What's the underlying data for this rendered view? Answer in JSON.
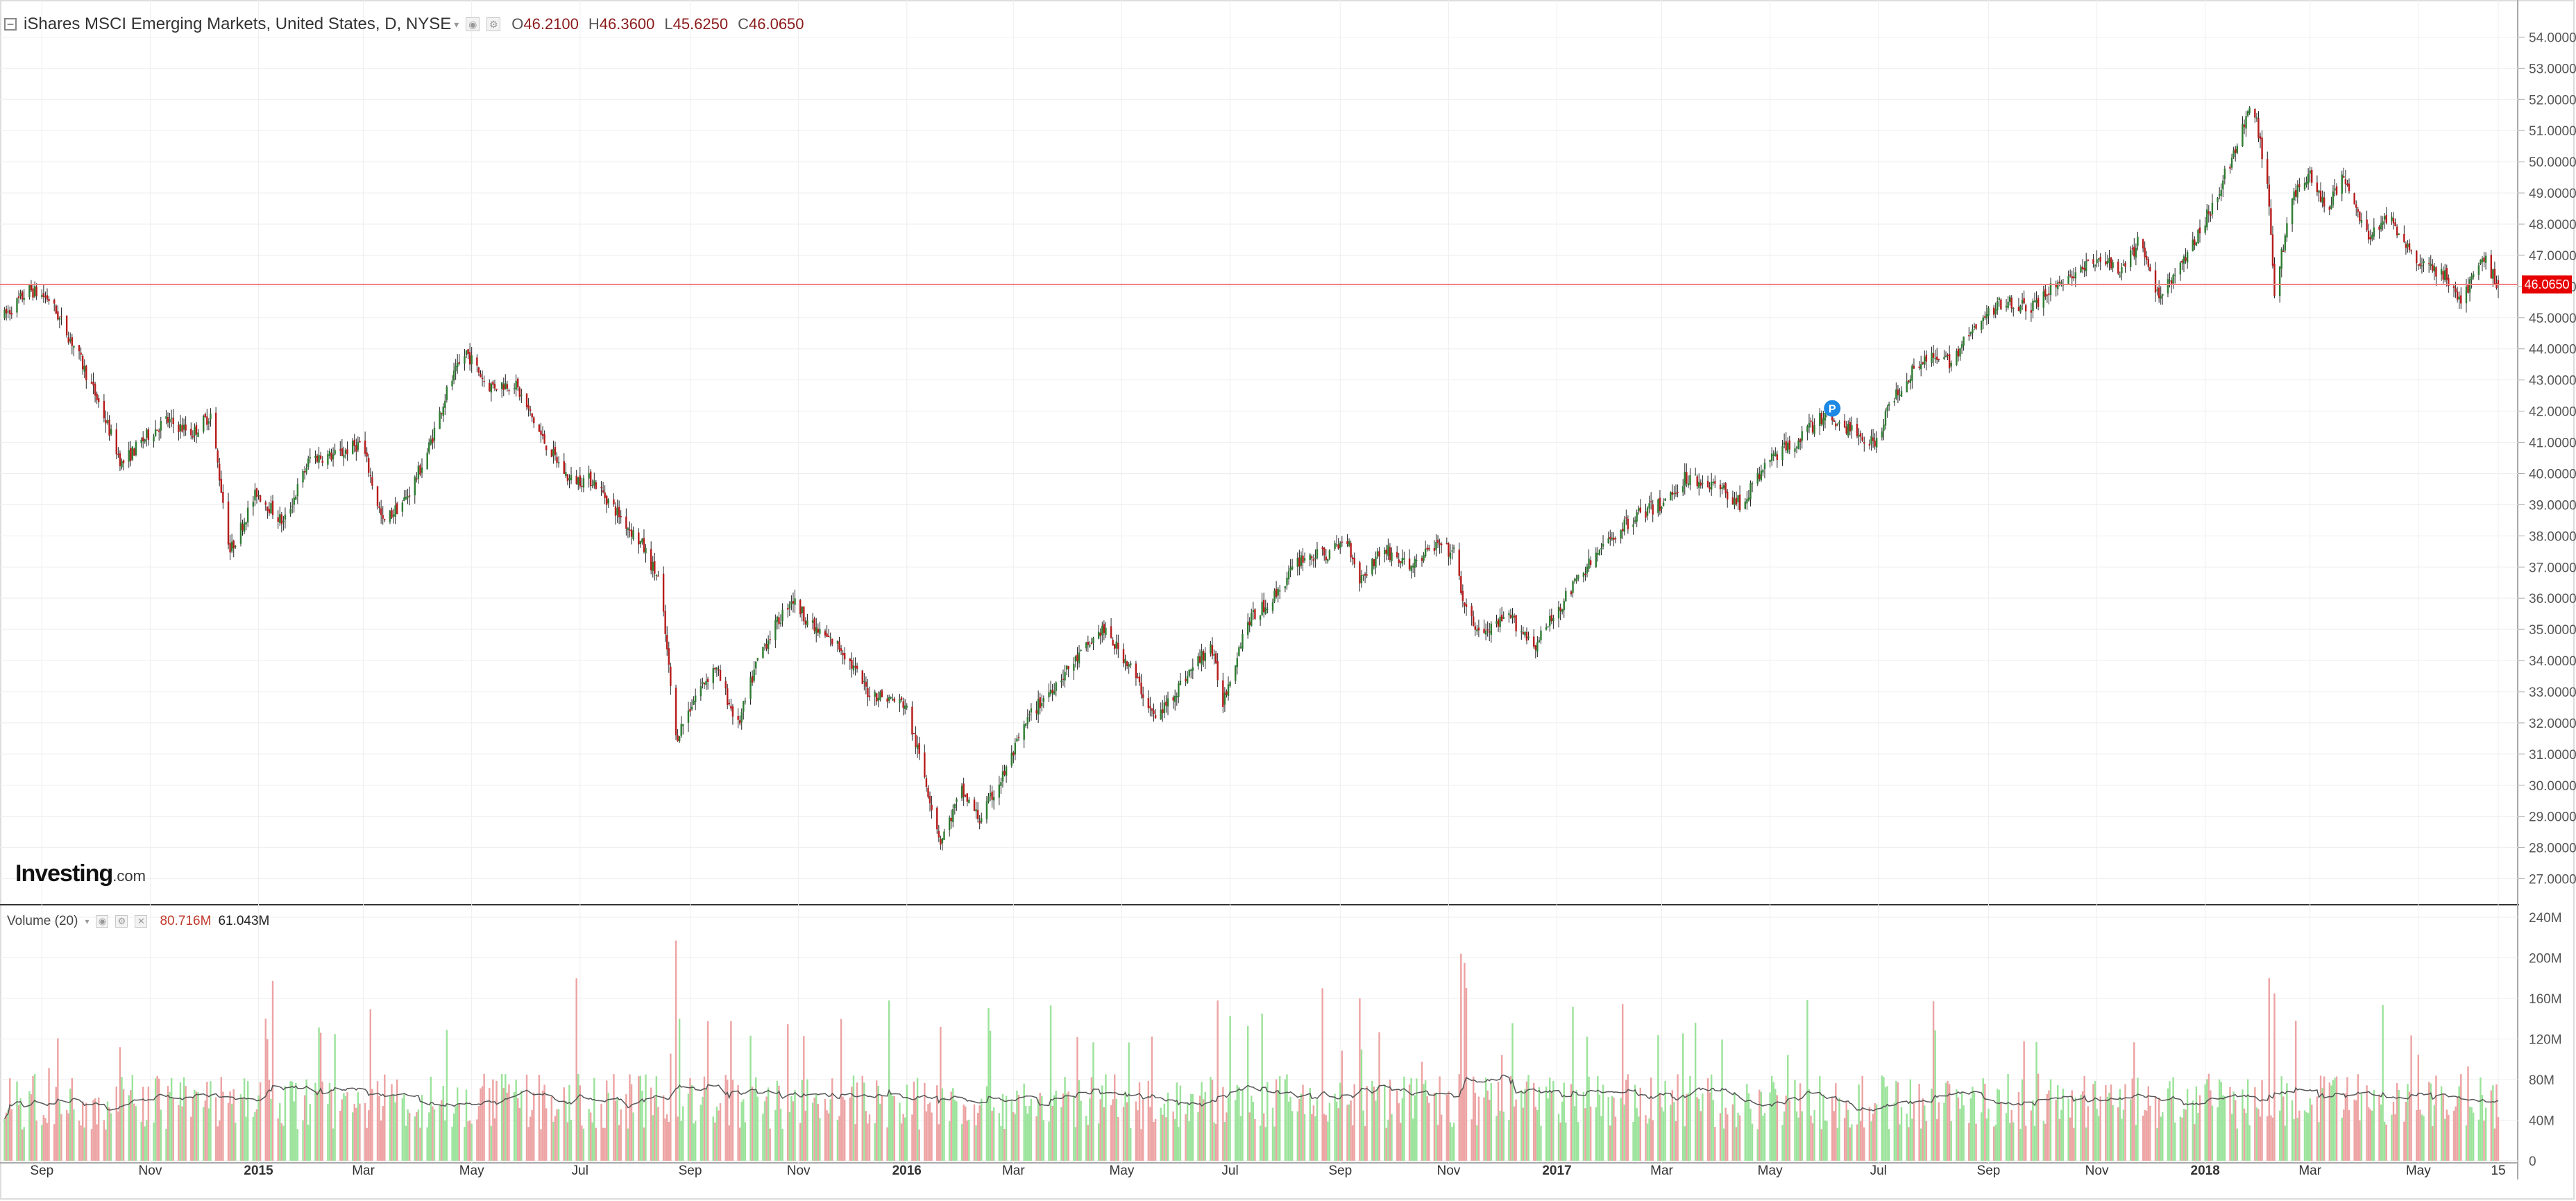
{
  "legend": {
    "title": "iShares MSCI Emerging Markets, United States, D, NYSE",
    "o_label": "O",
    "o_value": "46.2100",
    "h_label": "H",
    "h_value": "46.3600",
    "l_label": "L",
    "l_value": "45.6250",
    "c_label": "C",
    "c_value": "46.0650",
    "icon_collapse": "minus-square-icon",
    "icon_dropdown": "chevron-down-icon",
    "icon_settings": "gear-icon",
    "icon_hide": "eye-icon"
  },
  "volume_legend": {
    "title": "Volume (20)",
    "value1": "80.716M",
    "value2": "61.043M",
    "icon_dropdown": "chevron-down-icon",
    "icon_hide": "eye-icon",
    "icon_settings": "gear-icon",
    "icon_close": "close-icon"
  },
  "logo": {
    "main": "Investing",
    "domain": ".com"
  },
  "price_label": "46.0650",
  "colors": {
    "up": "#2e7d32",
    "down": "#b71c1c",
    "vol_up": "#9be39b",
    "vol_down": "#eda3a3",
    "last_price_line": "#f08080",
    "grid": "#eeeeee",
    "axis_text": "#555555"
  },
  "chart_data": [
    {
      "type": "candlestick",
      "title": "iShares MSCI Emerging Markets, United States, D, NYSE",
      "ylim": [
        26.3,
        54.7
      ],
      "y_ticks": [
        "27.0000",
        "28.0000",
        "29.0000",
        "30.0000",
        "31.0000",
        "32.0000",
        "33.0000",
        "34.0000",
        "35.0000",
        "36.0000",
        "37.0000",
        "38.0000",
        "39.0000",
        "40.0000",
        "41.0000",
        "42.0000",
        "43.0000",
        "44.0000",
        "45.0000",
        "46.0000",
        "47.0000",
        "48.0000",
        "49.0000",
        "50.0000",
        "51.0000",
        "52.0000",
        "53.0000",
        "54.0000"
      ],
      "x_ticks": [
        {
          "label": "Sep",
          "date": "2014-09-01"
        },
        {
          "label": "Nov",
          "date": "2014-11-01"
        },
        {
          "label": "2015",
          "date": "2015-01-01"
        },
        {
          "label": "Mar",
          "date": "2015-03-01"
        },
        {
          "label": "May",
          "date": "2015-05-01"
        },
        {
          "label": "Jul",
          "date": "2015-07-01"
        },
        {
          "label": "Sep",
          "date": "2015-09-01"
        },
        {
          "label": "Nov",
          "date": "2015-11-01"
        },
        {
          "label": "2016",
          "date": "2016-01-01"
        },
        {
          "label": "Mar",
          "date": "2016-03-01"
        },
        {
          "label": "May",
          "date": "2016-05-01"
        },
        {
          "label": "Jul",
          "date": "2016-07-01"
        },
        {
          "label": "Sep",
          "date": "2016-09-01"
        },
        {
          "label": "Nov",
          "date": "2016-11-01"
        },
        {
          "label": "2017",
          "date": "2017-01-01"
        },
        {
          "label": "Mar",
          "date": "2017-03-01"
        },
        {
          "label": "May",
          "date": "2017-05-01"
        },
        {
          "label": "Jul",
          "date": "2017-07-01"
        },
        {
          "label": "Sep",
          "date": "2017-09-01"
        },
        {
          "label": "Nov",
          "date": "2017-11-01"
        },
        {
          "label": "2018",
          "date": "2018-01-01"
        },
        {
          "label": "Mar",
          "date": "2018-03-01"
        },
        {
          "label": "May",
          "date": "2018-05-01"
        },
        {
          "label": "15",
          "date": "2018-06-15"
        }
      ],
      "last_price": 46.065,
      "last_bar": {
        "date": "2018-06-15",
        "open": 46.21,
        "high": 46.36,
        "low": 45.625,
        "close": 46.065
      },
      "price_path": [
        [
          "2014-08-10",
          45.0
        ],
        [
          "2014-08-25",
          45.9
        ],
        [
          "2014-09-05",
          45.6
        ],
        [
          "2014-09-20",
          44.0
        ],
        [
          "2014-10-05",
          42.0
        ],
        [
          "2014-10-16",
          40.3
        ],
        [
          "2014-10-30",
          41.2
        ],
        [
          "2014-11-10",
          41.7
        ],
        [
          "2014-11-25",
          41.3
        ],
        [
          "2014-12-05",
          41.9
        ],
        [
          "2014-12-16",
          37.5
        ],
        [
          "2014-12-31",
          39.4
        ],
        [
          "2015-01-15",
          38.4
        ],
        [
          "2015-01-30",
          40.5
        ],
        [
          "2015-02-15",
          40.6
        ],
        [
          "2015-02-28",
          41.0
        ],
        [
          "2015-03-12",
          38.4
        ],
        [
          "2015-03-25",
          39.2
        ],
        [
          "2015-04-05",
          40.5
        ],
        [
          "2015-04-18",
          42.8
        ],
        [
          "2015-04-28",
          43.9
        ],
        [
          "2015-05-10",
          42.8
        ],
        [
          "2015-05-25",
          42.9
        ],
        [
          "2015-06-10",
          41.1
        ],
        [
          "2015-06-25",
          39.8
        ],
        [
          "2015-07-08",
          39.8
        ],
        [
          "2015-07-20",
          38.9
        ],
        [
          "2015-08-05",
          37.7
        ],
        [
          "2015-08-15",
          36.5
        ],
        [
          "2015-08-24",
          31.5
        ],
        [
          "2015-09-05",
          33.0
        ],
        [
          "2015-09-15",
          33.8
        ],
        [
          "2015-09-28",
          31.9
        ],
        [
          "2015-10-10",
          34.2
        ],
        [
          "2015-10-28",
          36.0
        ],
        [
          "2015-11-10",
          35.0
        ],
        [
          "2015-11-25",
          34.4
        ],
        [
          "2015-12-10",
          33.0
        ],
        [
          "2015-12-31",
          32.6
        ],
        [
          "2016-01-10",
          30.5
        ],
        [
          "2016-01-20",
          28.2
        ],
        [
          "2016-02-01",
          29.8
        ],
        [
          "2016-02-11",
          28.9
        ],
        [
          "2016-02-25",
          30.4
        ],
        [
          "2016-03-10",
          32.2
        ],
        [
          "2016-03-25",
          33.3
        ],
        [
          "2016-04-05",
          34.0
        ],
        [
          "2016-04-20",
          35.0
        ],
        [
          "2016-05-05",
          33.9
        ],
        [
          "2016-05-20",
          32.1
        ],
        [
          "2016-06-05",
          33.4
        ],
        [
          "2016-06-20",
          34.5
        ],
        [
          "2016-06-27",
          32.7
        ],
        [
          "2016-07-10",
          35.2
        ],
        [
          "2016-07-25",
          36.0
        ],
        [
          "2016-08-10",
          37.3
        ],
        [
          "2016-08-25",
          37.4
        ],
        [
          "2016-09-05",
          37.9
        ],
        [
          "2016-09-12",
          36.6
        ],
        [
          "2016-09-25",
          37.6
        ],
        [
          "2016-10-10",
          37.0
        ],
        [
          "2016-10-25",
          37.7
        ],
        [
          "2016-11-05",
          37.4
        ],
        [
          "2016-11-10",
          35.6
        ],
        [
          "2016-11-20",
          34.8
        ],
        [
          "2016-12-05",
          35.4
        ],
        [
          "2016-12-20",
          34.5
        ],
        [
          "2016-12-31",
          35.5
        ],
        [
          "2017-01-15",
          36.8
        ],
        [
          "2017-01-31",
          37.9
        ],
        [
          "2017-02-15",
          38.7
        ],
        [
          "2017-03-01",
          39.0
        ],
        [
          "2017-03-15",
          39.9
        ],
        [
          "2017-04-01",
          39.6
        ],
        [
          "2017-04-15",
          39.0
        ],
        [
          "2017-05-01",
          40.5
        ],
        [
          "2017-05-15",
          41.0
        ],
        [
          "2017-06-01",
          41.9
        ],
        [
          "2017-06-15",
          41.4
        ],
        [
          "2017-06-29",
          41.0
        ],
        [
          "2017-07-10",
          42.5
        ],
        [
          "2017-07-25",
          43.7
        ],
        [
          "2017-08-10",
          43.6
        ],
        [
          "2017-08-25",
          44.7
        ],
        [
          "2017-09-10",
          45.6
        ],
        [
          "2017-09-25",
          45.3
        ],
        [
          "2017-10-10",
          46.1
        ],
        [
          "2017-10-25",
          46.6
        ],
        [
          "2017-11-05",
          46.9
        ],
        [
          "2017-11-15",
          46.4
        ],
        [
          "2017-11-25",
          47.5
        ],
        [
          "2017-12-05",
          45.7
        ],
        [
          "2017-12-20",
          46.8
        ],
        [
          "2018-01-05",
          48.6
        ],
        [
          "2018-01-18",
          50.4
        ],
        [
          "2018-01-28",
          51.9
        ],
        [
          "2018-02-05",
          49.2
        ],
        [
          "2018-02-09",
          45.9
        ],
        [
          "2018-02-20",
          49.0
        ],
        [
          "2018-03-01",
          49.6
        ],
        [
          "2018-03-10",
          48.4
        ],
        [
          "2018-03-20",
          49.6
        ],
        [
          "2018-04-01",
          47.6
        ],
        [
          "2018-04-15",
          48.2
        ],
        [
          "2018-05-01",
          46.8
        ],
        [
          "2018-05-15",
          46.4
        ],
        [
          "2018-05-25",
          45.5
        ],
        [
          "2018-06-07",
          46.9
        ],
        [
          "2018-06-15",
          46.065
        ]
      ],
      "annotation": {
        "date": "2017-06-05",
        "price": 42.0,
        "label": "P"
      }
    },
    {
      "type": "bar",
      "title": "Volume (20)",
      "ylim": [
        0,
        240
      ],
      "y_ticks": [
        "0",
        "40M",
        "80M",
        "120M",
        "160M",
        "200M",
        "240M"
      ],
      "moving_average_period": 20,
      "volume_spikes_millions": [
        [
          "2015-08-24",
          217
        ],
        [
          "2015-08-26",
          140
        ],
        [
          "2016-08-22",
          170
        ],
        [
          "2016-09-12",
          160
        ],
        [
          "2016-11-08",
          204
        ],
        [
          "2016-11-10",
          195
        ],
        [
          "2017-03-20",
          136
        ],
        [
          "2018-02-06",
          180
        ],
        [
          "2018-02-09",
          165
        ],
        [
          "2016-06-24",
          158
        ],
        [
          "2015-01-05",
          140
        ],
        [
          "2016-01-20",
          132
        ]
      ],
      "baseline_volume_millions": 50
    }
  ]
}
